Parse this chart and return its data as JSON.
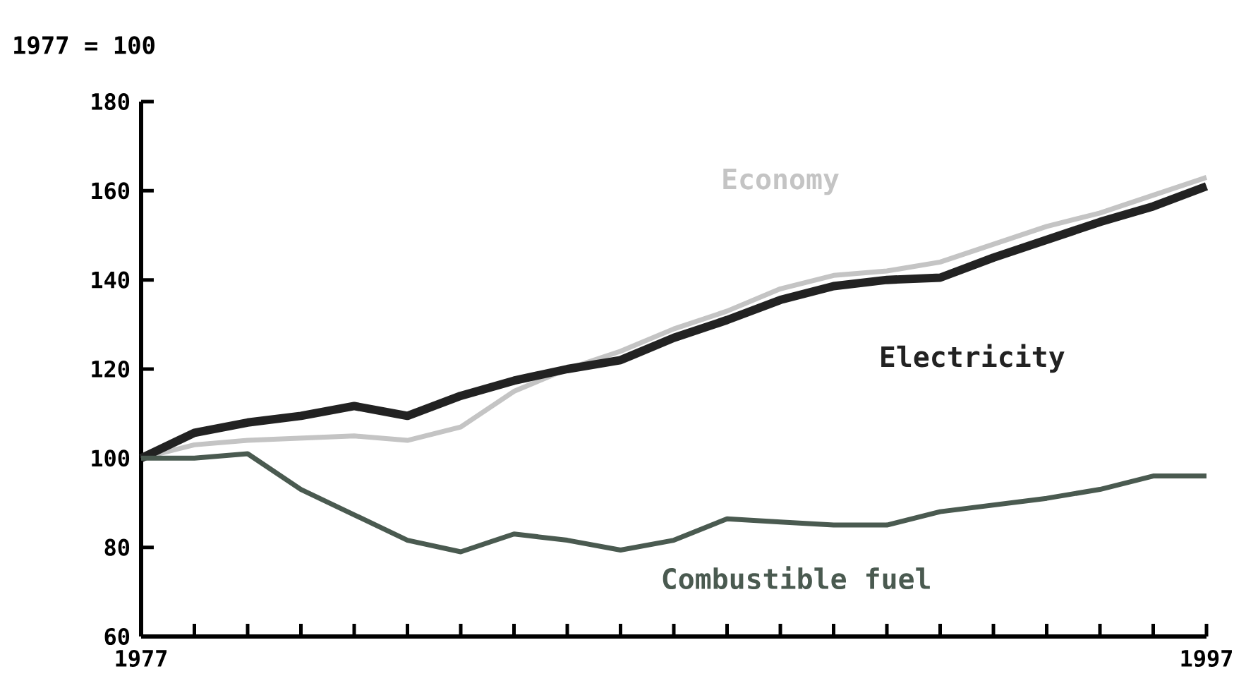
{
  "chart_data": {
    "type": "line",
    "ylabel": "1977 = 100",
    "x": [
      1977,
      1978,
      1979,
      1980,
      1981,
      1982,
      1983,
      1984,
      1985,
      1986,
      1987,
      1988,
      1989,
      1990,
      1991,
      1992,
      1993,
      1994,
      1995,
      1996,
      1997
    ],
    "series": [
      {
        "name": "Economy",
        "color": "#c4c4c4",
        "values": [
          100,
          103,
          104,
          104.5,
          105,
          104,
          107,
          115,
          120,
          124,
          129,
          133,
          138,
          141,
          142,
          144,
          148,
          152,
          155,
          159,
          163
        ]
      },
      {
        "name": "Electricity",
        "color": "#222222",
        "values": [
          100,
          105.7,
          108,
          109.5,
          111.7,
          109.5,
          114,
          117.4,
          120,
          122,
          127,
          131,
          135.5,
          138.6,
          140,
          140.5,
          145,
          149,
          153,
          156.5,
          161
        ]
      },
      {
        "name": "Combustible fuel",
        "color": "#4a5a50",
        "values": [
          100,
          100,
          101,
          93,
          87.3,
          81.6,
          79,
          83,
          81.6,
          79.4,
          81.6,
          86.4,
          85.7,
          85,
          85,
          88,
          89.5,
          91,
          93,
          96,
          96
        ]
      }
    ],
    "xlim": [
      1977,
      1997
    ],
    "ylim": [
      60,
      180
    ],
    "xticks": [
      1977,
      {
        "value": 1978,
        "label": null
      },
      {
        "value": 1979,
        "label": null
      },
      {
        "value": 1980,
        "label": null
      },
      {
        "value": 1981,
        "label": null
      },
      {
        "value": 1982,
        "label": null
      },
      {
        "value": 1983,
        "label": null
      },
      {
        "value": 1984,
        "label": null
      },
      {
        "value": 1985,
        "label": null
      },
      {
        "value": 1986,
        "label": null
      },
      {
        "value": 1987,
        "label": null
      },
      {
        "value": 1988,
        "label": null
      },
      {
        "value": 1989,
        "label": null
      },
      {
        "value": 1990,
        "label": null
      },
      {
        "value": 1991,
        "label": null
      },
      {
        "value": 1992,
        "label": null
      },
      {
        "value": 1993,
        "label": null
      },
      {
        "value": 1994,
        "label": null
      },
      {
        "value": 1995,
        "label": null
      },
      {
        "value": 1996,
        "label": null
      },
      1997
    ],
    "yticks": [
      60,
      80,
      100,
      120,
      140,
      160,
      180
    ],
    "grid": false,
    "legend": false,
    "marker": "none",
    "line_style": "solid"
  }
}
